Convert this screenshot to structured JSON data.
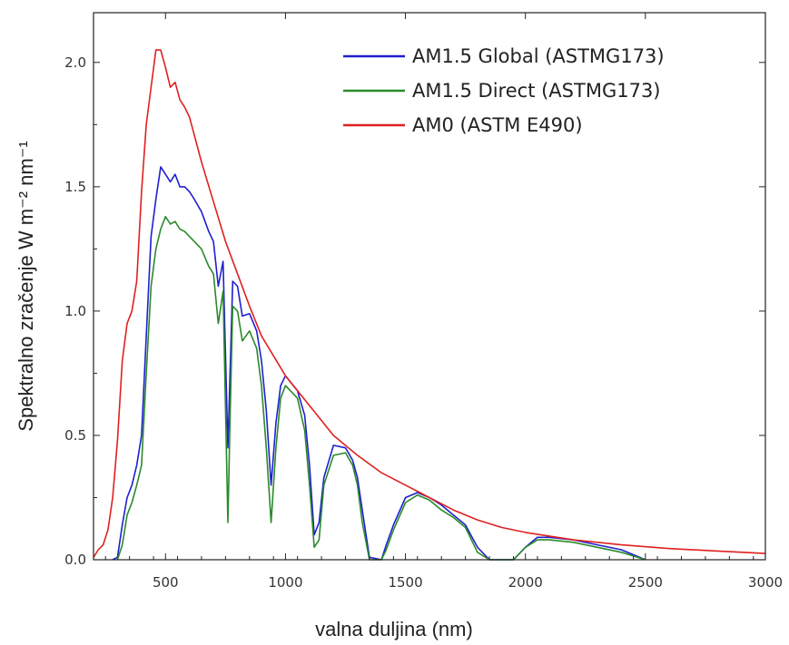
{
  "chart_data": {
    "type": "line",
    "title": "",
    "xlabel": "valna duljina (nm)",
    "ylabel": "Spektralno zračenje W m⁻² nm⁻¹",
    "xlim": [
      200,
      3000
    ],
    "ylim": [
      0.0,
      2.2
    ],
    "x_ticks": [
      "500",
      "1000",
      "1500",
      "2000",
      "2500",
      "3000"
    ],
    "y_ticks": [
      "0.0",
      "0.5",
      "1.0",
      "1.5",
      "2.0"
    ],
    "grid": false,
    "legend_position": "top-right",
    "series": [
      {
        "name": "AM1.5 Global (ASTMG173)",
        "color": "#1f1fd0",
        "points": [
          [
            280,
            0.0
          ],
          [
            300,
            0.01
          ],
          [
            320,
            0.14
          ],
          [
            340,
            0.25
          ],
          [
            360,
            0.3
          ],
          [
            380,
            0.38
          ],
          [
            400,
            0.5
          ],
          [
            420,
            0.9
          ],
          [
            440,
            1.3
          ],
          [
            460,
            1.45
          ],
          [
            480,
            1.58
          ],
          [
            500,
            1.55
          ],
          [
            520,
            1.52
          ],
          [
            540,
            1.55
          ],
          [
            560,
            1.5
          ],
          [
            580,
            1.5
          ],
          [
            600,
            1.48
          ],
          [
            620,
            1.45
          ],
          [
            650,
            1.4
          ],
          [
            680,
            1.32
          ],
          [
            700,
            1.28
          ],
          [
            720,
            1.1
          ],
          [
            740,
            1.2
          ],
          [
            760,
            0.45
          ],
          [
            780,
            1.12
          ],
          [
            800,
            1.1
          ],
          [
            820,
            0.98
          ],
          [
            850,
            0.99
          ],
          [
            880,
            0.92
          ],
          [
            900,
            0.8
          ],
          [
            920,
            0.6
          ],
          [
            940,
            0.3
          ],
          [
            960,
            0.55
          ],
          [
            980,
            0.7
          ],
          [
            1000,
            0.74
          ],
          [
            1050,
            0.68
          ],
          [
            1080,
            0.58
          ],
          [
            1100,
            0.38
          ],
          [
            1120,
            0.1
          ],
          [
            1140,
            0.15
          ],
          [
            1160,
            0.33
          ],
          [
            1200,
            0.46
          ],
          [
            1250,
            0.45
          ],
          [
            1280,
            0.4
          ],
          [
            1300,
            0.33
          ],
          [
            1320,
            0.2
          ],
          [
            1350,
            0.01
          ],
          [
            1400,
            0.0
          ],
          [
            1420,
            0.06
          ],
          [
            1450,
            0.14
          ],
          [
            1500,
            0.25
          ],
          [
            1550,
            0.27
          ],
          [
            1600,
            0.25
          ],
          [
            1650,
            0.22
          ],
          [
            1700,
            0.18
          ],
          [
            1750,
            0.14
          ],
          [
            1800,
            0.05
          ],
          [
            1850,
            0.0
          ],
          [
            1950,
            0.0
          ],
          [
            2000,
            0.05
          ],
          [
            2050,
            0.09
          ],
          [
            2100,
            0.09
          ],
          [
            2200,
            0.08
          ],
          [
            2300,
            0.06
          ],
          [
            2400,
            0.04
          ],
          [
            2450,
            0.02
          ],
          [
            2500,
            0.0
          ]
        ]
      },
      {
        "name": "AM1.5 Direct  (ASTMG173)",
        "color": "#2a8a2a",
        "points": [
          [
            300,
            0.0
          ],
          [
            320,
            0.06
          ],
          [
            340,
            0.18
          ],
          [
            360,
            0.23
          ],
          [
            380,
            0.3
          ],
          [
            400,
            0.38
          ],
          [
            420,
            0.75
          ],
          [
            440,
            1.1
          ],
          [
            460,
            1.25
          ],
          [
            480,
            1.33
          ],
          [
            500,
            1.38
          ],
          [
            520,
            1.35
          ],
          [
            540,
            1.36
          ],
          [
            560,
            1.33
          ],
          [
            580,
            1.32
          ],
          [
            600,
            1.3
          ],
          [
            620,
            1.28
          ],
          [
            650,
            1.25
          ],
          [
            680,
            1.18
          ],
          [
            700,
            1.15
          ],
          [
            720,
            0.95
          ],
          [
            740,
            1.08
          ],
          [
            760,
            0.15
          ],
          [
            770,
            0.6
          ],
          [
            780,
            1.02
          ],
          [
            800,
            1.0
          ],
          [
            820,
            0.88
          ],
          [
            850,
            0.92
          ],
          [
            880,
            0.85
          ],
          [
            900,
            0.7
          ],
          [
            920,
            0.45
          ],
          [
            940,
            0.15
          ],
          [
            960,
            0.45
          ],
          [
            980,
            0.65
          ],
          [
            1000,
            0.7
          ],
          [
            1050,
            0.65
          ],
          [
            1080,
            0.52
          ],
          [
            1100,
            0.3
          ],
          [
            1120,
            0.05
          ],
          [
            1140,
            0.08
          ],
          [
            1160,
            0.3
          ],
          [
            1200,
            0.42
          ],
          [
            1250,
            0.43
          ],
          [
            1280,
            0.38
          ],
          [
            1300,
            0.3
          ],
          [
            1320,
            0.15
          ],
          [
            1350,
            0.0
          ],
          [
            1400,
            0.0
          ],
          [
            1420,
            0.04
          ],
          [
            1450,
            0.12
          ],
          [
            1500,
            0.23
          ],
          [
            1550,
            0.26
          ],
          [
            1600,
            0.24
          ],
          [
            1650,
            0.2
          ],
          [
            1700,
            0.17
          ],
          [
            1750,
            0.13
          ],
          [
            1800,
            0.03
          ],
          [
            1850,
            0.0
          ],
          [
            1950,
            0.0
          ],
          [
            2000,
            0.05
          ],
          [
            2050,
            0.08
          ],
          [
            2100,
            0.08
          ],
          [
            2200,
            0.07
          ],
          [
            2300,
            0.05
          ],
          [
            2400,
            0.03
          ],
          [
            2450,
            0.015
          ],
          [
            2500,
            0.0
          ]
        ]
      },
      {
        "name": "AM0 (ASTM E490)",
        "color": "#e02020",
        "points": [
          [
            200,
            0.01
          ],
          [
            220,
            0.04
          ],
          [
            240,
            0.06
          ],
          [
            260,
            0.12
          ],
          [
            280,
            0.25
          ],
          [
            300,
            0.48
          ],
          [
            320,
            0.8
          ],
          [
            340,
            0.95
          ],
          [
            360,
            1.0
          ],
          [
            380,
            1.12
          ],
          [
            400,
            1.48
          ],
          [
            420,
            1.75
          ],
          [
            440,
            1.9
          ],
          [
            460,
            2.05
          ],
          [
            480,
            2.05
          ],
          [
            500,
            1.98
          ],
          [
            520,
            1.9
          ],
          [
            540,
            1.92
          ],
          [
            560,
            1.85
          ],
          [
            580,
            1.82
          ],
          [
            600,
            1.78
          ],
          [
            650,
            1.6
          ],
          [
            700,
            1.44
          ],
          [
            750,
            1.28
          ],
          [
            800,
            1.15
          ],
          [
            850,
            1.02
          ],
          [
            900,
            0.9
          ],
          [
            950,
            0.82
          ],
          [
            1000,
            0.74
          ],
          [
            1100,
            0.62
          ],
          [
            1200,
            0.5
          ],
          [
            1300,
            0.42
          ],
          [
            1400,
            0.35
          ],
          [
            1500,
            0.3
          ],
          [
            1600,
            0.25
          ],
          [
            1700,
            0.2
          ],
          [
            1800,
            0.16
          ],
          [
            1900,
            0.13
          ],
          [
            2000,
            0.11
          ],
          [
            2200,
            0.08
          ],
          [
            2400,
            0.06
          ],
          [
            2600,
            0.045
          ],
          [
            2800,
            0.035
          ],
          [
            3000,
            0.025
          ]
        ]
      }
    ]
  }
}
